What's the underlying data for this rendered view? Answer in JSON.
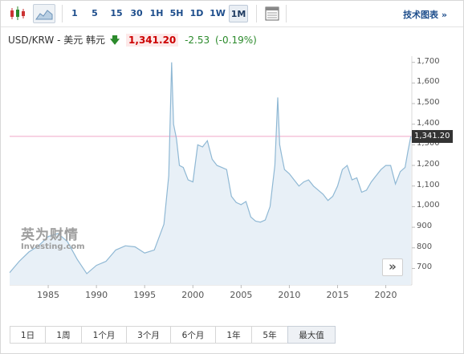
{
  "toolbar": {
    "intervals": [
      "1",
      "5",
      "15",
      "30",
      "1H",
      "5H",
      "1D",
      "1W",
      "1M"
    ],
    "active_interval": "1M",
    "tech_chart_label": "技术图表 »"
  },
  "quote": {
    "pair": "USD/KRW - 美元 韩元",
    "price": "1,341.20",
    "change": "-2.53",
    "change_pct": "(-0.19%)"
  },
  "ranges": {
    "buttons": [
      "1日",
      "1周",
      "1个月",
      "3个月",
      "6个月",
      "1年",
      "5年",
      "最大值"
    ],
    "active": "最大值"
  },
  "watermark": {
    "brand_cn": "英为财情",
    "brand_en": "Investing.com"
  },
  "colors": {
    "line": "#8fb8d4",
    "fill": "#e8f0f7",
    "current_line": "#f0a8c8",
    "price_tag": "#333333"
  },
  "chart_data": {
    "type": "area",
    "x": [
      1981,
      1982,
      1983,
      1984,
      1985,
      1986,
      1987,
      1988,
      1989,
      1990,
      1991,
      1992,
      1993,
      1994,
      1995,
      1996,
      1997,
      1997.5,
      1997.8,
      1998,
      1998.3,
      1998.6,
      1999,
      1999.5,
      2000,
      2000.5,
      2001,
      2001.5,
      2002,
      2002.5,
      2003,
      2003.5,
      2004,
      2004.5,
      2005,
      2005.5,
      2006,
      2006.5,
      2007,
      2007.5,
      2008,
      2008.5,
      2008.8,
      2009,
      2009.2,
      2009.5,
      2010,
      2010.5,
      2011,
      2011.5,
      2012,
      2012.5,
      2013,
      2013.5,
      2014,
      2014.5,
      2015,
      2015.5,
      2016,
      2016.5,
      2017,
      2017.5,
      2018,
      2018.5,
      2019,
      2019.5,
      2020,
      2020.5,
      2021,
      2021.5,
      2022,
      2022.3,
      2022.6
    ],
    "values": [
      680,
      735,
      780,
      810,
      855,
      870,
      830,
      745,
      675,
      715,
      735,
      790,
      810,
      805,
      775,
      790,
      915,
      1150,
      1700,
      1400,
      1330,
      1200,
      1190,
      1130,
      1120,
      1300,
      1290,
      1320,
      1230,
      1200,
      1190,
      1180,
      1050,
      1020,
      1010,
      1025,
      950,
      930,
      925,
      935,
      1000,
      1200,
      1530,
      1300,
      1250,
      1180,
      1160,
      1130,
      1100,
      1120,
      1130,
      1100,
      1080,
      1060,
      1030,
      1050,
      1100,
      1180,
      1200,
      1130,
      1140,
      1070,
      1080,
      1120,
      1150,
      1180,
      1200,
      1200,
      1110,
      1170,
      1190,
      1270,
      1341.2
    ],
    "current": 1341.2,
    "ylim": [
      620,
      1730
    ],
    "xlim": [
      1981,
      2022.7
    ],
    "y_ticks": [
      700,
      800,
      900,
      1000,
      1100,
      1200,
      1300,
      1400,
      1500,
      1600,
      1700
    ],
    "y_tick_labels": [
      "700",
      "800",
      "900",
      "1,000",
      "1,100",
      "1,200",
      "1,300",
      "1,400",
      "1,500",
      "1,600",
      "1,700"
    ],
    "x_ticks": [
      1985,
      1990,
      1995,
      2000,
      2005,
      2010,
      2015,
      2020
    ],
    "grid": false
  }
}
